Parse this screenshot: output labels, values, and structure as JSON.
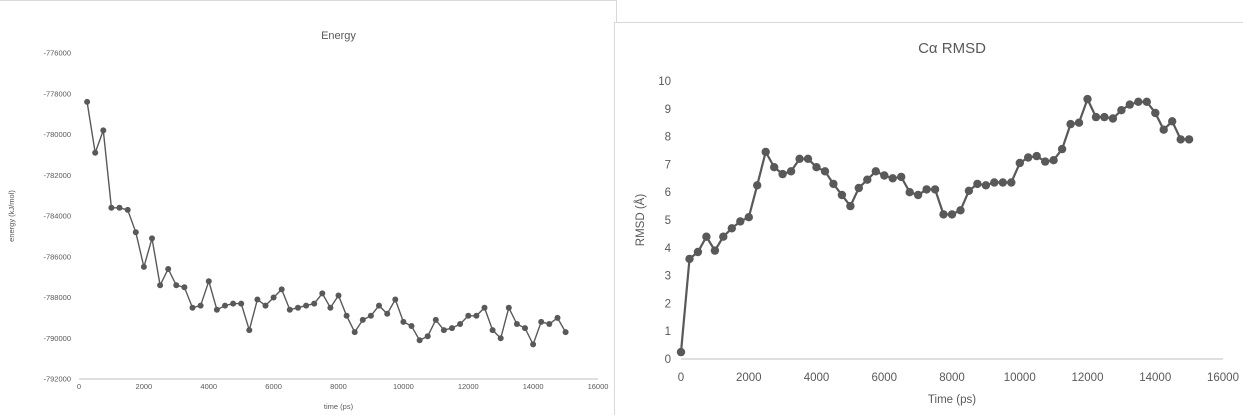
{
  "chart_data": [
    {
      "type": "line",
      "title": "Energy",
      "xlabel": "time (ps)",
      "ylabel": "energy (kJ/mol)",
      "xlim": [
        0,
        16000
      ],
      "ylim": [
        -792000,
        -776000
      ],
      "xticks": [
        0,
        2000,
        4000,
        6000,
        8000,
        10000,
        12000,
        14000,
        16000
      ],
      "yticks": [
        -776000,
        -778000,
        -780000,
        -782000,
        -784000,
        -786000,
        -788000,
        -790000,
        -792000
      ],
      "grid": false,
      "markers": true,
      "color": "#595959",
      "x": [
        250,
        500,
        750,
        1000,
        1250,
        1500,
        1750,
        2000,
        2250,
        2500,
        2750,
        3000,
        3250,
        3500,
        3750,
        4000,
        4250,
        4500,
        4750,
        5000,
        5250,
        5500,
        5750,
        6000,
        6250,
        6500,
        6750,
        7000,
        7250,
        7500,
        7750,
        8000,
        8250,
        8500,
        8750,
        9000,
        9250,
        9500,
        9750,
        10000,
        10250,
        10500,
        10750,
        11000,
        11250,
        11500,
        11750,
        12000,
        12250,
        12500,
        12750,
        13000,
        13250,
        13500,
        13750,
        14000,
        14250,
        14500,
        14750,
        15000
      ],
      "y": [
        -778400,
        -780900,
        -779800,
        -783600,
        -783600,
        -783700,
        -784800,
        -786500,
        -785100,
        -787400,
        -786600,
        -787400,
        -787500,
        -788500,
        -788400,
        -787200,
        -788600,
        -788400,
        -788300,
        -788300,
        -789600,
        -788100,
        -788400,
        -788000,
        -787600,
        -788600,
        -788500,
        -788400,
        -788300,
        -787800,
        -788500,
        -787900,
        -788900,
        -789700,
        -789100,
        -788900,
        -788400,
        -788800,
        -788100,
        -789200,
        -789400,
        -790100,
        -789900,
        -789100,
        -789600,
        -789500,
        -789300,
        -788900,
        -788900,
        -788500,
        -789600,
        -790000,
        -788500,
        -789300,
        -789500,
        -790300,
        -789200,
        -789300,
        -789000,
        -789700
      ]
    },
    {
      "type": "line",
      "title": "Cα RMSD",
      "xlabel": "Time (ps)",
      "ylabel": "RMSD (Å)",
      "xlim": [
        0,
        16000
      ],
      "ylim": [
        0,
        10
      ],
      "xticks": [
        0,
        2000,
        4000,
        6000,
        8000,
        10000,
        12000,
        14000,
        16000
      ],
      "yticks": [
        0,
        1,
        2,
        3,
        4,
        5,
        6,
        7,
        8,
        9,
        10
      ],
      "grid": false,
      "markers": true,
      "color": "#595959",
      "x": [
        0,
        250,
        500,
        750,
        1000,
        1250,
        1500,
        1750,
        2000,
        2250,
        2500,
        2750,
        3000,
        3250,
        3500,
        3750,
        4000,
        4250,
        4500,
        4750,
        5000,
        5250,
        5500,
        5750,
        6000,
        6250,
        6500,
        6750,
        7000,
        7250,
        7500,
        7750,
        8000,
        8250,
        8500,
        8750,
        9000,
        9250,
        9500,
        9750,
        10000,
        10250,
        10500,
        10750,
        11000,
        11250,
        11500,
        11750,
        12000,
        12250,
        12500,
        12750,
        13000,
        13250,
        13500,
        13750,
        14000,
        14250,
        14500,
        14750,
        15000
      ],
      "y": [
        0.25,
        3.6,
        3.85,
        4.4,
        3.9,
        4.4,
        4.7,
        4.95,
        5.1,
        6.25,
        7.45,
        6.9,
        6.65,
        6.75,
        7.2,
        7.2,
        6.9,
        6.75,
        6.3,
        5.9,
        5.5,
        6.15,
        6.45,
        6.75,
        6.6,
        6.5,
        6.55,
        6.0,
        5.9,
        6.1,
        6.1,
        5.2,
        5.2,
        5.35,
        6.05,
        6.3,
        6.25,
        6.35,
        6.35,
        6.35,
        7.05,
        7.25,
        7.3,
        7.1,
        7.15,
        7.55,
        8.45,
        8.5,
        9.35,
        8.7,
        8.7,
        8.65,
        8.95,
        9.15,
        9.25,
        9.25,
        8.85,
        8.25,
        8.55,
        7.9,
        7.9
      ]
    }
  ]
}
